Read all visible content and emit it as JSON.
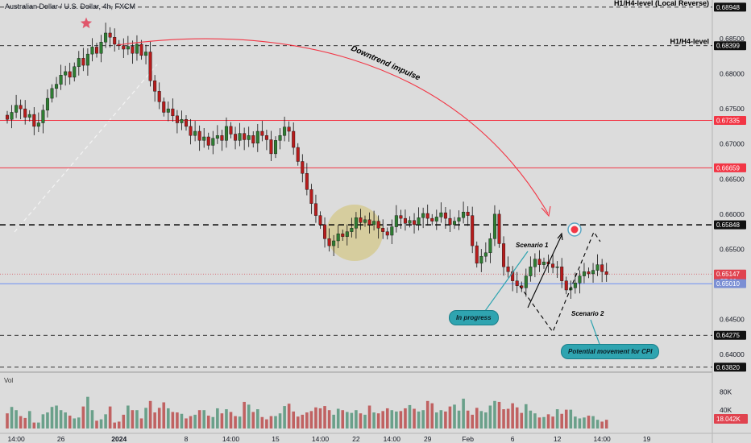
{
  "header": {
    "title": "Australian Dollar / U.S. Dollar, 4h, FXCM"
  },
  "volume_label": "Vol",
  "colors": {
    "up": "#26a69a",
    "down": "#ef5350",
    "up_candle": "#2e7d32",
    "down_candle": "#b71c1c",
    "red_line": "#f23645",
    "blue_line": "#2962ff",
    "accent_star": "#e0566b",
    "callout": "#2fa4b0"
  },
  "chart_data": {
    "type": "candlestick",
    "symbol": "AUDUSD",
    "timeframe": "4h",
    "y_ticks": [
      "0.68500",
      "0.68000",
      "0.67500",
      "0.67000",
      "0.66500",
      "0.66000",
      "0.65500",
      "0.65000",
      "0.64500",
      "0.64000"
    ],
    "y_tick_values": [
      0.685,
      0.68,
      0.675,
      0.67,
      0.665,
      0.66,
      0.655,
      0.65,
      0.645,
      0.64
    ],
    "ylim": [
      0.6375,
      0.6905
    ],
    "x_ticks": [
      "14:00",
      "26",
      "2024",
      "8",
      "14:00",
      "15",
      "14:00",
      "22",
      "14:00",
      "29",
      "Feb",
      "6",
      "12",
      "14:00",
      "19"
    ],
    "x_tick_index": [
      2,
      12,
      25,
      40,
      50,
      60,
      70,
      78,
      86,
      94,
      103,
      113,
      123,
      133,
      143
    ],
    "x_bold": [
      "2024"
    ],
    "levels": [
      {
        "value": 0.68948,
        "label": "0.68948",
        "text": "H1/H4-level (Local Reverse)",
        "style": "dashed-black"
      },
      {
        "value": 0.68399,
        "label": "0.68399",
        "text": "H1/H4-level",
        "style": "dashed-black"
      },
      {
        "value": 0.67335,
        "label": "0.67335",
        "style": "red"
      },
      {
        "value": 0.66659,
        "label": "0.66659",
        "style": "red"
      },
      {
        "value": 0.65848,
        "label": "0.65848",
        "style": "dashed-black-bold"
      },
      {
        "value": 0.65147,
        "label": "0.65147",
        "sub": "57:09",
        "style": "price"
      },
      {
        "value": 0.6501,
        "label": "0.65010",
        "style": "blue"
      },
      {
        "value": 0.64275,
        "label": "0.64275",
        "style": "dashed-black"
      },
      {
        "value": 0.6382,
        "label": "0.63820",
        "style": "dashed-black"
      }
    ],
    "close": [
      0.6735,
      0.6745,
      0.6755,
      0.675,
      0.6738,
      0.6742,
      0.6725,
      0.673,
      0.6748,
      0.6765,
      0.6779,
      0.6785,
      0.6798,
      0.6803,
      0.6795,
      0.681,
      0.6822,
      0.6812,
      0.6828,
      0.6838,
      0.6829,
      0.6845,
      0.6858,
      0.6852,
      0.6842,
      0.684,
      0.6835,
      0.6839,
      0.6829,
      0.6842,
      0.6826,
      0.6831,
      0.679,
      0.6775,
      0.676,
      0.6745,
      0.675,
      0.674,
      0.673,
      0.6735,
      0.6725,
      0.6712,
      0.6718,
      0.6705,
      0.671,
      0.6698,
      0.6708,
      0.6712,
      0.6705,
      0.6725,
      0.6714,
      0.6705,
      0.6715,
      0.6706,
      0.6712,
      0.6701,
      0.6718,
      0.6712,
      0.6706,
      0.6686,
      0.6705,
      0.6712,
      0.6724,
      0.6718,
      0.6695,
      0.6675,
      0.6658,
      0.6635,
      0.6615,
      0.6598,
      0.6585,
      0.6565,
      0.6555,
      0.6562,
      0.6572,
      0.6568,
      0.6575,
      0.658,
      0.6595,
      0.6588,
      0.6592,
      0.6585,
      0.659,
      0.658,
      0.6575,
      0.657,
      0.6582,
      0.6598,
      0.6594,
      0.6587,
      0.6591,
      0.6585,
      0.6595,
      0.6601,
      0.6594,
      0.659,
      0.6596,
      0.6602,
      0.6594,
      0.6585,
      0.659,
      0.6595,
      0.6603,
      0.6598,
      0.6555,
      0.653,
      0.654,
      0.6545,
      0.6565,
      0.66,
      0.6558,
      0.6525,
      0.6518,
      0.6505,
      0.6498,
      0.6495,
      0.6512,
      0.6525,
      0.6536,
      0.6528,
      0.6532,
      0.6529,
      0.6524,
      0.6525,
      0.6505,
      0.6492,
      0.6495,
      0.6502,
      0.6512,
      0.6518,
      0.6515,
      0.652,
      0.6528,
      0.6518,
      0.6514
    ],
    "volume": [
      33,
      47,
      40,
      27,
      23,
      38,
      13,
      13,
      31,
      35,
      47,
      50,
      40,
      35,
      28,
      22,
      24,
      48,
      69,
      40,
      17,
      20,
      31,
      48,
      13,
      15,
      30,
      50,
      40,
      40,
      22,
      45,
      60,
      35,
      45,
      57,
      44,
      36,
      35,
      32,
      22,
      27,
      30,
      40,
      40,
      28,
      25,
      44,
      33,
      42,
      36,
      27,
      26,
      58,
      52,
      36,
      42,
      25,
      20,
      27,
      27,
      33,
      49,
      54,
      37,
      26,
      30,
      35,
      38,
      46,
      44,
      49,
      40,
      30,
      43,
      40,
      36,
      34,
      40,
      33,
      30,
      50,
      35,
      33,
      38,
      44,
      40,
      37,
      38,
      44,
      51,
      43,
      37,
      40,
      60,
      55,
      35,
      40,
      37,
      48,
      52,
      39,
      65,
      39,
      30,
      45,
      38,
      35,
      50,
      60,
      58,
      42,
      43,
      55,
      46,
      34,
      53,
      39,
      33,
      24,
      25,
      31,
      26,
      42,
      32,
      41,
      41,
      26,
      22,
      24,
      28,
      27,
      19,
      15,
      19
    ],
    "vol_axis": [
      "80K",
      "40K"
    ],
    "vol_axis_values": [
      80,
      40
    ],
    "vol_last": "18.042K"
  },
  "annotations": {
    "downtrend": "Downtrend impulse",
    "scenario1": "Scenario 1",
    "scenario2": "Scenario 2",
    "in_progress": "In progress",
    "potential": "Potential movement for CPI"
  }
}
